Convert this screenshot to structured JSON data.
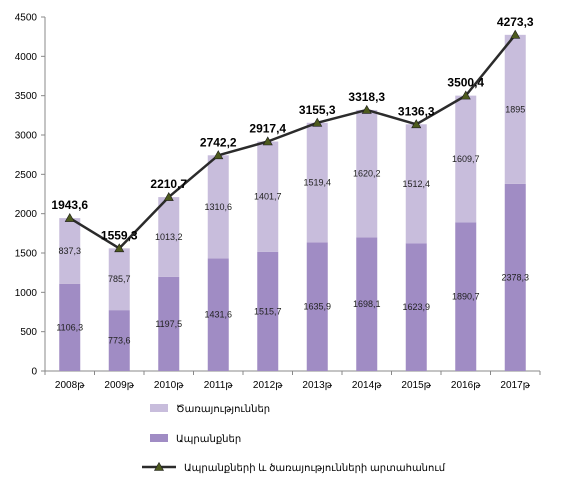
{
  "chart_data": {
    "type": "bar",
    "stacked": true,
    "categories": [
      "2008թ",
      "2009թ",
      "2010թ",
      "2011թ",
      "2012թ",
      "2013թ",
      "2014թ",
      "2015թ",
      "2016թ",
      "2017թ"
    ],
    "series": [
      {
        "name": "Ապրանքներ",
        "kind": "bar",
        "color": "#a08cc4",
        "values": [
          1106.3,
          773.6,
          1197.5,
          1431.6,
          1515.7,
          1635.9,
          1698.1,
          1623.9,
          1890.7,
          2378.3
        ],
        "labels": [
          "1106,3",
          "773,6",
          "1197,5",
          "1431,6",
          "1515,7",
          "1635,9",
          "1698,1",
          "1623,9",
          "1890,7",
          "2378,3"
        ]
      },
      {
        "name": "Ծառայություններ",
        "kind": "bar",
        "color": "#c8bddc",
        "values": [
          837.3,
          785.7,
          1013.2,
          1310.6,
          1401.7,
          1519.4,
          1620.2,
          1512.4,
          1609.7,
          1895
        ],
        "labels": [
          "837,3",
          "785,7",
          "1013,2",
          "1310,6",
          "1401,7",
          "1519,4",
          "1620,2",
          "1512,4",
          "1609,7",
          "1895"
        ]
      },
      {
        "name": "Ապրանքների և ծառայությունների արտահանում",
        "kind": "line",
        "color": "#2b2b2b",
        "marker_color": "#4d5a1e",
        "values": [
          1943.6,
          1559.3,
          2210.7,
          2742.2,
          2917.4,
          3155.3,
          3318.3,
          3136.3,
          3500.4,
          4273.3
        ],
        "labels": [
          "1943,6",
          "1559,3",
          "2210,7",
          "2742,2",
          "2917,4",
          "3155,3",
          "3318,3",
          "3136,3",
          "3500,4",
          "4273,3"
        ]
      }
    ],
    "yticks": [
      "0",
      "500",
      "1000",
      "1500",
      "2000",
      "2500",
      "3000",
      "3500",
      "4000",
      "4500"
    ],
    "ylim": [
      0,
      4500
    ],
    "grid": false,
    "legend_position": "bottom"
  }
}
